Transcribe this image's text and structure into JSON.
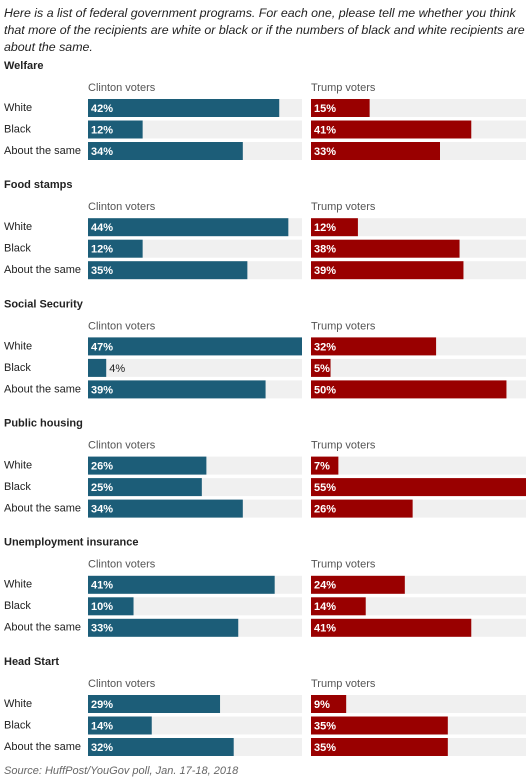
{
  "title": "Here is a list of federal government programs. For each one, please tell me whether you think that more of the recipients are white or black or if the numbers of black and white recipients are about the same.",
  "source": "Source: HuffPost/YouGov poll, Jan. 17-18, 2018",
  "chart_data": [
    {
      "type": "bar",
      "orientation": "horizontal",
      "title": "Welfare",
      "categories": [
        "White",
        "Black",
        "About the same"
      ],
      "xlim": [
        0,
        47
      ],
      "x2lim": [
        0,
        55
      ],
      "series": [
        {
          "name": "Clinton voters",
          "color": "#1c5d78",
          "values": [
            42,
            12,
            34
          ],
          "value_labels": [
            "42%",
            "12%",
            "34%"
          ]
        },
        {
          "name": "Trump voters",
          "color": "#990000",
          "axis": "x2",
          "values": [
            15,
            41,
            33
          ],
          "value_labels": [
            "15%",
            "41%",
            "33%"
          ]
        }
      ]
    },
    {
      "type": "bar",
      "orientation": "horizontal",
      "title": "Food stamps",
      "categories": [
        "White",
        "Black",
        "About the same"
      ],
      "xlim": [
        0,
        47
      ],
      "x2lim": [
        0,
        55
      ],
      "series": [
        {
          "name": "Clinton voters",
          "color": "#1c5d78",
          "values": [
            44,
            12,
            35
          ],
          "value_labels": [
            "44%",
            "12%",
            "35%"
          ]
        },
        {
          "name": "Trump voters",
          "color": "#990000",
          "axis": "x2",
          "values": [
            12,
            38,
            39
          ],
          "value_labels": [
            "12%",
            "38%",
            "39%"
          ]
        }
      ]
    },
    {
      "type": "bar",
      "orientation": "horizontal",
      "title": "Social Security",
      "categories": [
        "White",
        "Black",
        "About the same"
      ],
      "xlim": [
        0,
        47
      ],
      "x2lim": [
        0,
        55
      ],
      "series": [
        {
          "name": "Clinton voters",
          "color": "#1c5d78",
          "values": [
            47,
            4,
            39
          ],
          "value_labels": [
            "47%",
            "4%",
            "39%"
          ]
        },
        {
          "name": "Trump voters",
          "color": "#990000",
          "axis": "x2",
          "values": [
            32,
            5,
            50
          ],
          "value_labels": [
            "32%",
            "5%",
            "50%"
          ]
        }
      ]
    },
    {
      "type": "bar",
      "orientation": "horizontal",
      "title": "Public housing",
      "categories": [
        "White",
        "Black",
        "About the same"
      ],
      "xlim": [
        0,
        47
      ],
      "x2lim": [
        0,
        55
      ],
      "series": [
        {
          "name": "Clinton voters",
          "color": "#1c5d78",
          "values": [
            26,
            25,
            34
          ],
          "value_labels": [
            "26%",
            "25%",
            "34%"
          ]
        },
        {
          "name": "Trump voters",
          "color": "#990000",
          "axis": "x2",
          "values": [
            7,
            55,
            26
          ],
          "value_labels": [
            "7%",
            "55%",
            "26%"
          ]
        }
      ]
    },
    {
      "type": "bar",
      "orientation": "horizontal",
      "title": "Unemployment insurance",
      "categories": [
        "White",
        "Black",
        "About the same"
      ],
      "xlim": [
        0,
        47
      ],
      "x2lim": [
        0,
        55
      ],
      "series": [
        {
          "name": "Clinton voters",
          "color": "#1c5d78",
          "values": [
            41,
            10,
            33
          ],
          "value_labels": [
            "41%",
            "10%",
            "33%"
          ]
        },
        {
          "name": "Trump voters",
          "color": "#990000",
          "axis": "x2",
          "values": [
            24,
            14,
            41
          ],
          "value_labels": [
            "24%",
            "14%",
            "41%"
          ]
        }
      ]
    },
    {
      "type": "bar",
      "orientation": "horizontal",
      "title": "Head Start",
      "categories": [
        "White",
        "Black",
        "About the same"
      ],
      "xlim": [
        0,
        47
      ],
      "x2lim": [
        0,
        55
      ],
      "series": [
        {
          "name": "Clinton voters",
          "color": "#1c5d78",
          "values": [
            29,
            14,
            32
          ],
          "value_labels": [
            "29%",
            "14%",
            "32%"
          ]
        },
        {
          "name": "Trump voters",
          "color": "#990000",
          "axis": "x2",
          "values": [
            9,
            35,
            35
          ],
          "value_labels": [
            "9%",
            "35%",
            "35%"
          ]
        }
      ]
    }
  ]
}
